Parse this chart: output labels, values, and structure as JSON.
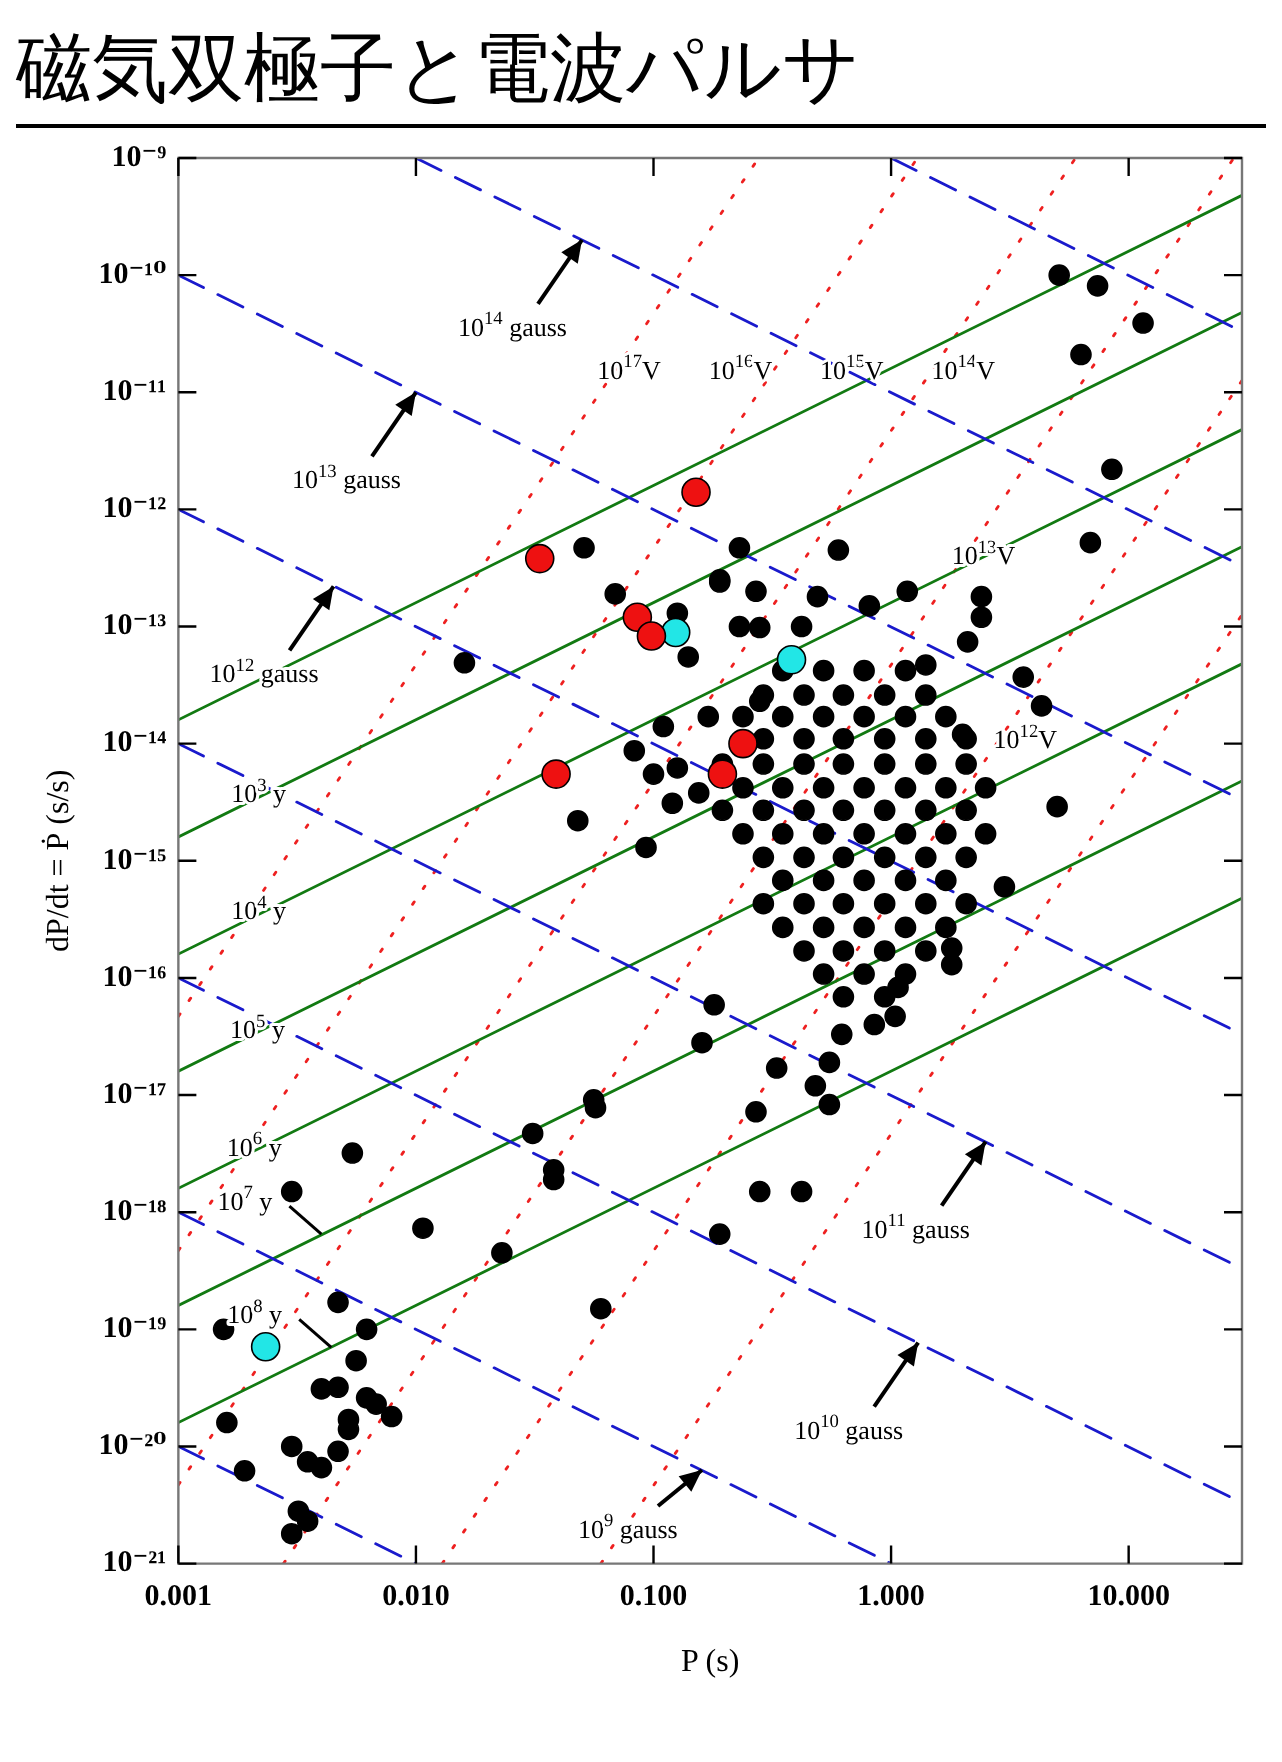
{
  "chart_data": {
    "type": "scatter",
    "title": "磁気双極子と電波パルサ",
    "xlabel": "P (s)",
    "ylabel": "dP/dt = Ṗ (s/s)",
    "log": "xy",
    "xlim": [
      0.001,
      30
    ],
    "ylim": [
      1e-21,
      1e-09
    ],
    "xticks": [
      0.001,
      {
        "value": 0.01,
        "label": "0.010"
      },
      {
        "value": 0.1,
        "label": "0.100"
      },
      {
        "value": 1,
        "label": "1.000"
      },
      {
        "value": 10,
        "label": "10.000"
      }
    ],
    "yticks": [
      {
        "value": 1e-21,
        "label": "10⁻²¹"
      },
      {
        "value": 1e-20,
        "label": "10⁻²⁰"
      },
      {
        "value": 1e-19,
        "label": "10⁻¹⁹"
      },
      {
        "value": 1e-18,
        "label": "10⁻¹⁸"
      },
      {
        "value": 1e-17,
        "label": "10⁻¹⁷"
      },
      {
        "value": 1e-16,
        "label": "10⁻¹⁶"
      },
      {
        "value": 1e-15,
        "label": "10⁻¹⁵"
      },
      {
        "value": 1e-14,
        "label": "10⁻¹⁴"
      },
      {
        "value": 1e-13,
        "label": "10⁻¹³"
      },
      {
        "value": 1e-12,
        "label": "10⁻¹²"
      },
      {
        "value": 1e-11,
        "label": "10⁻¹¹"
      },
      {
        "value": 1e-10,
        "label": "10⁻¹⁰"
      },
      {
        "value": 1e-09,
        "label": "10⁻⁹"
      }
    ],
    "series": [
      {
        "type": "line",
        "color": "#1a1acc",
        "line_style": "dashed",
        "x": [
          1,
          30
        ],
        "values": [
          1e-09,
          3.3e-11
        ]
      },
      {
        "type": "line",
        "color": "#1a1acc",
        "line_style": "dashed",
        "x": [
          0.01,
          30
        ],
        "values": [
          1e-09,
          3.3e-13
        ]
      },
      {
        "type": "line",
        "color": "#1a1acc",
        "line_style": "dashed",
        "x": [
          0.001,
          30
        ],
        "values": [
          1e-10,
          3.3e-15
        ]
      },
      {
        "type": "line",
        "color": "#1a1acc",
        "line_style": "dashed",
        "x": [
          0.001,
          30
        ],
        "values": [
          1e-12,
          3.3e-17
        ]
      },
      {
        "type": "line",
        "color": "#1a1acc",
        "line_style": "dashed",
        "x": [
          0.001,
          30
        ],
        "values": [
          1e-14,
          3.3e-19
        ]
      },
      {
        "type": "line",
        "color": "#1a1acc",
        "line_style": "dashed",
        "x": [
          0.001,
          30
        ],
        "values": [
          1e-16,
          3.3e-21
        ]
      },
      {
        "type": "line",
        "color": "#1a1acc",
        "line_style": "dashed",
        "x": [
          0.001,
          1
        ],
        "values": [
          1e-18,
          1e-21
        ]
      },
      {
        "type": "line",
        "color": "#1a1acc",
        "line_style": "dashed",
        "x": [
          0.001,
          0.01
        ],
        "values": [
          1e-20,
          1e-21
        ]
      },
      {
        "type": "line",
        "color": "#127a12",
        "line_style": "solid",
        "x": [
          0.001,
          30
        ],
        "values": [
          1.6e-14,
          4.8e-10
        ]
      },
      {
        "type": "line",
        "color": "#127a12",
        "line_style": "solid",
        "x": [
          0.001,
          30
        ],
        "values": [
          1.6e-15,
          4.8e-11
        ]
      },
      {
        "type": "line",
        "color": "#127a12",
        "line_style": "solid",
        "x": [
          0.001,
          30
        ],
        "values": [
          1.6e-16,
          4.8e-12
        ]
      },
      {
        "type": "line",
        "color": "#127a12",
        "line_style": "solid",
        "x": [
          0.001,
          30
        ],
        "values": [
          1.6e-17,
          4.8e-13
        ]
      },
      {
        "type": "line",
        "color": "#127a12",
        "line_style": "solid",
        "x": [
          0.001,
          30
        ],
        "values": [
          1.6e-18,
          4.8e-14
        ]
      },
      {
        "type": "line",
        "color": "#127a12",
        "line_style": "solid",
        "x": [
          0.001,
          30
        ],
        "values": [
          1.6e-19,
          4.8e-15
        ]
      },
      {
        "type": "line",
        "color": "#127a12",
        "line_style": "solid",
        "x": [
          0.001,
          30
        ],
        "values": [
          1.6e-20,
          4.8e-16
        ]
      },
      {
        "type": "line",
        "color": "#ee2020",
        "line_style": "dotted",
        "x": [
          0.06,
          30
        ],
        "values": [
          1e-21,
          1.26e-13
        ]
      },
      {
        "type": "line",
        "color": "#ee2020",
        "line_style": "dotted",
        "x": [
          0.0129,
          30
        ],
        "values": [
          1e-21,
          1.26e-11
        ]
      },
      {
        "type": "line",
        "color": "#ee2020",
        "line_style": "dotted",
        "x": [
          0.00277,
          27.7
        ],
        "values": [
          1e-21,
          1e-09
        ]
      },
      {
        "type": "line",
        "color": "#ee2020",
        "line_style": "dotted",
        "x": [
          0.001,
          5.98
        ],
        "values": [
          4.7e-21,
          1e-09
        ]
      },
      {
        "type": "line",
        "color": "#ee2020",
        "line_style": "dotted",
        "x": [
          0.001,
          1.29
        ],
        "values": [
          4.7e-19,
          1e-09
        ]
      },
      {
        "type": "line",
        "color": "#ee2020",
        "line_style": "dotted",
        "x": [
          0.001,
          0.277
        ],
        "values": [
          4.7e-17,
          1e-09
        ]
      },
      {
        "color": "#000000",
        "marker": "circle",
        "x": [
          5.1,
          7.4,
          11.5,
          6.3,
          8.5,
          6.9,
          0.6,
          0.23,
          0.19,
          0.27,
          0.49,
          1.17,
          0.81,
          2.4,
          2.4,
          2.1,
          0.23,
          0.28,
          0.42,
          1.4,
          3.6,
          4.3,
          5,
          0.28,
          2,
          0.051,
          0.19,
          0.069,
          0.126,
          0.14,
          0.016,
          0.17,
          0.11,
          0.083,
          0.1,
          0.126,
          0.12,
          0.048,
          0.093,
          0.155,
          0.18,
          0.16,
          0.056,
          0.057,
          0.031,
          0.038,
          0.038,
          0.0054,
          0.003,
          0.0107,
          0.023,
          0.06,
          0.0047,
          0.0062,
          0.00155,
          0.0056,
          0.004,
          0.0047,
          0.0062,
          0.0068,
          0.0079,
          0.0052,
          0.0052,
          0.0016,
          0.003,
          0.0035,
          0.004,
          0.0047,
          0.0019,
          0.0032,
          0.0035,
          0.003,
          0.19,
          3,
          1.8,
          1.8,
          1.07,
          1.04,
          0.85,
          0.62,
          0.55,
          0.33,
          0.48,
          0.55,
          0.27,
          0.28,
          0.42,
          0.35,
          0.52,
          0.77,
          1.15,
          0.29,
          0.43,
          0.63,
          0.94,
          1.4,
          0.238,
          0.35,
          0.52,
          0.77,
          1.15,
          1.7,
          0.29,
          0.43,
          0.63,
          0.94,
          1.4,
          2.07,
          0.195,
          0.29,
          0.43,
          0.63,
          0.94,
          1.4,
          2.07,
          0.238,
          0.35,
          0.52,
          0.77,
          1.15,
          1.7,
          2.5,
          0.195,
          0.29,
          0.43,
          0.63,
          0.94,
          1.4,
          2.07,
          0.238,
          0.35,
          0.52,
          0.77,
          1.15,
          1.7,
          2.5,
          0.29,
          0.43,
          0.63,
          0.94,
          1.4,
          2.07,
          0.35,
          0.52,
          0.77,
          1.15,
          1.7,
          0.29,
          0.43,
          0.63,
          0.94,
          1.4,
          2.07,
          0.35,
          0.52,
          0.77,
          1.15,
          1.7,
          0.43,
          0.63,
          0.94,
          1.4,
          0.52,
          0.77,
          1.15,
          0.63,
          0.94
        ],
        "values": [
          1e-10,
          8.1e-11,
          3.9e-11,
          2.1e-11,
          2.2e-12,
          5.2e-13,
          4.5e-13,
          4.7e-13,
          2.4e-13,
          2e-13,
          1.8e-13,
          2e-13,
          1.5e-13,
          1.8e-13,
          1.2e-13,
          7.4e-14,
          1e-13,
          9.8e-14,
          1e-13,
          4.7e-14,
          3.7e-14,
          2.1e-14,
          2.9e-15,
          2.3e-14,
          1.2e-14,
          4.7e-13,
          2.5e-13,
          1.9e-13,
          1.3e-13,
          5.5e-14,
          4.9e-14,
          1.7e-14,
          1.4e-14,
          8.7e-15,
          5.5e-15,
          6.2e-15,
          3.1e-15,
          2.2e-15,
          1.3e-15,
          3.8e-15,
          5.9e-17,
          2.8e-17,
          9.1e-18,
          7.8e-18,
          4.7e-18,
          2.3e-18,
          1.9e-18,
          3.2e-18,
          1.5e-18,
          7.3e-19,
          4.5e-19,
          1.5e-19,
          1.7e-19,
          1e-19,
          1e-19,
          5.4e-20,
          3.1e-20,
          3.2e-20,
          2.6e-20,
          2.3e-20,
          1.8e-20,
          1.7e-20,
          1.4e-20,
          1.6e-20,
          1e-20,
          7.4e-21,
          6.6e-21,
          9.1e-21,
          6.2e-21,
          2.8e-21,
          2.3e-21,
          1.8e-21,
          6.5e-19,
          6e-16,
          1.8e-16,
          1.3e-16,
          8.3e-17,
          4.7e-17,
          4e-17,
          3.3e-17,
          1.9e-17,
          1.7e-17,
          1.2e-17,
          8.3e-18,
          7.2e-18,
          1.5e-18,
          1.5e-18,
          4.2e-14,
          4.2e-14,
          4.2e-14,
          4.2e-14,
          2.6e-14,
          2.6e-14,
          2.6e-14,
          2.6e-14,
          2.6e-14,
          1.7e-14,
          1.7e-14,
          1.7e-14,
          1.7e-14,
          1.7e-14,
          1.7e-14,
          1.1e-14,
          1.1e-14,
          1.1e-14,
          1.1e-14,
          1.1e-14,
          1.1e-14,
          6.7e-15,
          6.7e-15,
          6.7e-15,
          6.7e-15,
          6.7e-15,
          6.7e-15,
          6.7e-15,
          4.2e-15,
          4.2e-15,
          4.2e-15,
          4.2e-15,
          4.2e-15,
          4.2e-15,
          4.2e-15,
          2.7e-15,
          2.7e-15,
          2.7e-15,
          2.7e-15,
          2.7e-15,
          2.7e-15,
          2.7e-15,
          1.7e-15,
          1.7e-15,
          1.7e-15,
          1.7e-15,
          1.7e-15,
          1.7e-15,
          1.7e-15,
          1.07e-15,
          1.07e-15,
          1.07e-15,
          1.07e-15,
          1.07e-15,
          1.07e-15,
          6.8e-16,
          6.8e-16,
          6.8e-16,
          6.8e-16,
          6.8e-16,
          4.3e-16,
          4.3e-16,
          4.3e-16,
          4.3e-16,
          4.3e-16,
          4.3e-16,
          2.7e-16,
          2.7e-16,
          2.7e-16,
          2.7e-16,
          2.7e-16,
          1.7e-16,
          1.7e-16,
          1.7e-16,
          1.7e-16,
          1.08e-16,
          1.08e-16,
          1.08e-16,
          6.9e-17,
          6.9e-17
        ]
      },
      {
        "color": "#ee1111",
        "marker": "circle",
        "x": [
          0.151,
          0.0332,
          0.0855,
          0.098,
          0.0389,
          0.238,
          0.195
        ],
        "values": [
          1.4e-12,
          3.8e-13,
          1.2e-13,
          8.3e-14,
          5.5e-15,
          1e-14,
          5.5e-15
        ]
      },
      {
        "color": "#22e6e6",
        "marker": "circle",
        "x": [
          0.124,
          0.381,
          0.00233
        ],
        "values": [
          8.9e-14,
          5.2e-14,
          7.1e-20
        ]
      }
    ],
    "annotations": [
      {
        "text": "10$^{14}$ gauss",
        "x": 0.05,
        "y": 2e-10
      },
      {
        "text": "10$^{13}$ gauss",
        "x": 0.01,
        "y": 1e-11
      },
      {
        "text": "10$^{12}$ gauss",
        "x": 0.0045,
        "y": 2.2e-13
      },
      {
        "text": "10$^{11}$ gauss",
        "x": 2.5,
        "y": 4e-18
      },
      {
        "text": "10$^{10}$ gauss",
        "x": 1.3,
        "y": 7.7e-20
      },
      {
        "text": "10$^{9}$ gauss",
        "x": 0.16,
        "y": 6.3e-21
      },
      {
        "text": "10$^{7}$ y",
        "x": 0.004,
        "y": 6.5e-19
      },
      {
        "text": "10$^{8}$ y",
        "x": 0.0044,
        "y": 7e-20
      },
      {
        "text": "10$^{3}$ y",
        "x": 0.00167,
        "y": 2.7e-15
      },
      {
        "text": "10$^{4}$ y",
        "x": 0.00167,
        "y": 2.7e-16
      },
      {
        "text": "10$^{5}$ y",
        "x": 0.00165,
        "y": 2.6e-17
      },
      {
        "text": "10$^{6}$ y",
        "x": 0.0016,
        "y": 2.6e-18
      },
      {
        "text": "10$^{17}$V",
        "x": 0.058,
        "y": 1.3e-11
      },
      "10$^{16}$V",
      "10$^{15}$V",
      {
        "text": "10$^{14}$V",
        "x": 1.48,
        "y": 1.3e-11
      },
      {
        "text": "10$^{13}$V",
        "x": 1.8,
        "y": 3.4e-13
      },
      {
        "text": "10$^{12}$V",
        "x": 2.7,
        "y": 9.1e-15
      }
    ]
  }
}
